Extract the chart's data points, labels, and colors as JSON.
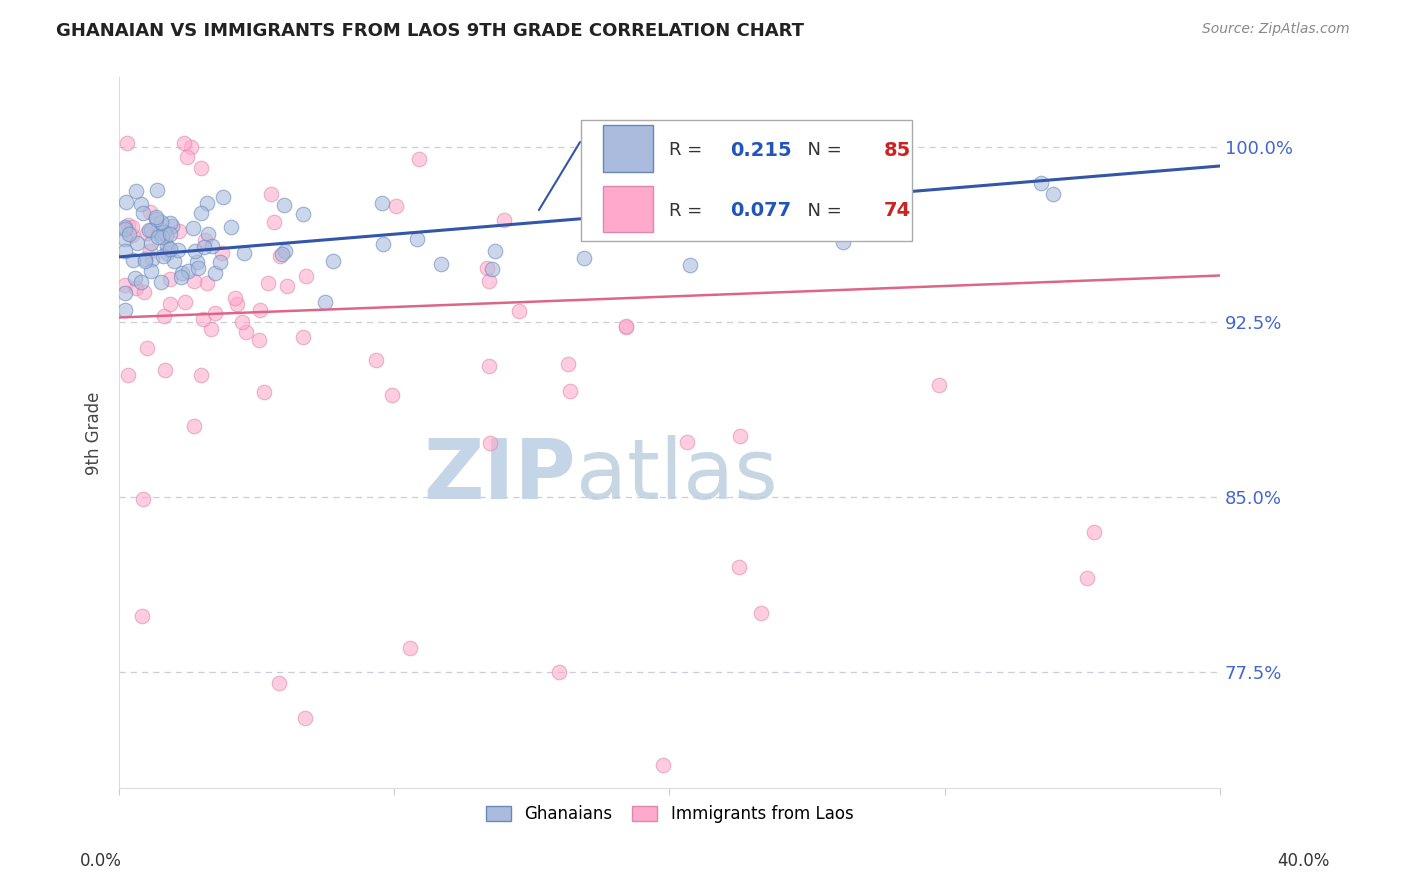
{
  "title": "GHANAIAN VS IMMIGRANTS FROM LAOS 9TH GRADE CORRELATION CHART",
  "source": "Source: ZipAtlas.com",
  "ylabel": "9th Grade",
  "ytick_vals": [
    0.775,
    0.85,
    0.925,
    1.0
  ],
  "ytick_labels": [
    "77.5%",
    "85.0%",
    "92.5%",
    "100.0%"
  ],
  "xlim": [
    0.0,
    0.4
  ],
  "ylim": [
    0.725,
    1.03
  ],
  "legend_blue_r": "0.215",
  "legend_blue_n": "85",
  "legend_pink_r": "0.077",
  "legend_pink_n": "74",
  "blue_fill_color": "#AABBDD",
  "blue_edge_color": "#6688BB",
  "pink_fill_color": "#FFAACC",
  "pink_edge_color": "#DD88AA",
  "line_blue_color": "#3355AA",
  "line_pink_color": "#DD6688",
  "legend_text_color": "#333333",
  "legend_r_color": "#2255BB",
  "legend_n_color": "#CC2222",
  "ytick_color": "#4466CC",
  "source_color": "#888888",
  "title_color": "#222222",
  "grid_color": "#CCCCDD",
  "watermark_zip_color": "#C5D5E8",
  "watermark_atlas_color": "#B8CCDD"
}
